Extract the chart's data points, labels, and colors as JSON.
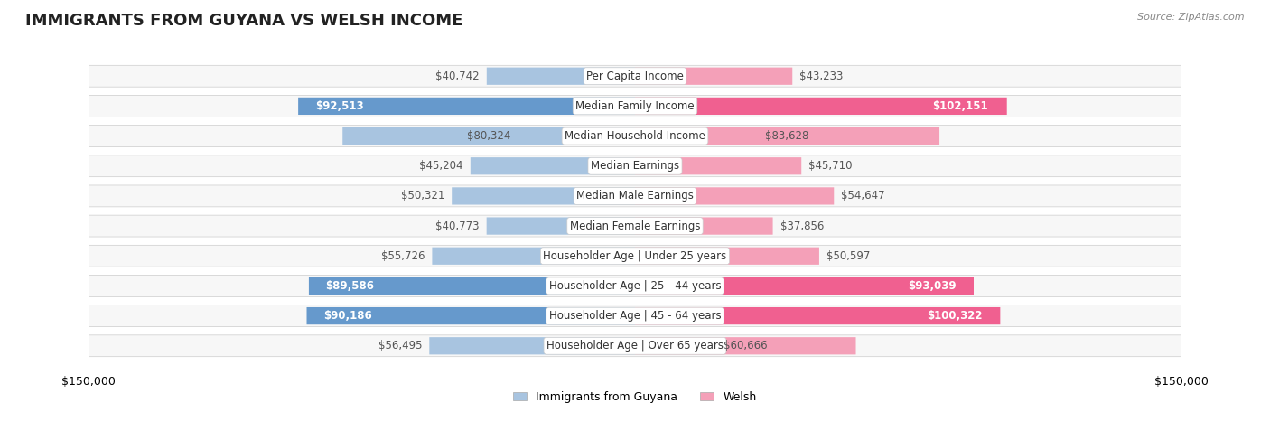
{
  "title": "IMMIGRANTS FROM GUYANA VS WELSH INCOME",
  "source": "Source: ZipAtlas.com",
  "categories": [
    "Per Capita Income",
    "Median Family Income",
    "Median Household Income",
    "Median Earnings",
    "Median Male Earnings",
    "Median Female Earnings",
    "Householder Age | Under 25 years",
    "Householder Age | 25 - 44 years",
    "Householder Age | 45 - 64 years",
    "Householder Age | Over 65 years"
  ],
  "guyana_values": [
    40742,
    92513,
    80324,
    45204,
    50321,
    40773,
    55726,
    89586,
    90186,
    56495
  ],
  "welsh_values": [
    43233,
    102151,
    83628,
    45710,
    54647,
    37856,
    50597,
    93039,
    100322,
    60666
  ],
  "guyana_color_light": "#a8c4e0",
  "guyana_color_dark": "#6699cc",
  "welsh_color_light": "#f4a0b8",
  "welsh_color_dark": "#f06090",
  "bar_bg_color": "#f0f0f0",
  "row_bg_color": "#f7f7f7",
  "axis_limit": 150000,
  "label_fontsize": 8.5,
  "category_fontsize": 8.5,
  "title_fontsize": 13,
  "legend_label_guyana": "Immigrants from Guyana",
  "legend_label_welsh": "Welsh"
}
